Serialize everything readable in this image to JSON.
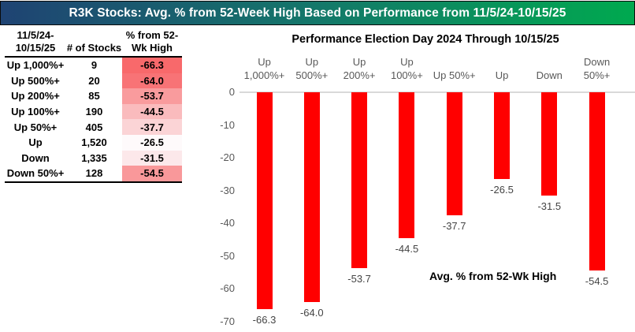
{
  "title_bar": {
    "text": "R3K Stocks: Avg. % from 52-Week High Based on Performance from 11/5/24-10/15/25",
    "gradient_left": "#1F4373",
    "gradient_mid": "#14786A",
    "gradient_right": "#00A94F",
    "text_color": "#FFFFFF"
  },
  "table": {
    "header": {
      "period_line1": "11/5/24-",
      "period_line2": "10/15/25",
      "stocks": "# of Stocks",
      "pct_line1": "% from 52-",
      "pct_line2": "Wk High"
    },
    "rows": [
      {
        "label": "Up 1,000%+",
        "count": "9",
        "value": "-66.3",
        "bg": "#F8696B"
      },
      {
        "label": "Up 500%+",
        "count": "20",
        "value": "-64.0",
        "bg": "#F87376"
      },
      {
        "label": "Up 200%+",
        "count": "85",
        "value": "-53.7",
        "bg": "#F99B9D"
      },
      {
        "label": "Up 100%+",
        "count": "190",
        "value": "-44.5",
        "bg": "#FABBBD"
      },
      {
        "label": "Up 50%+",
        "count": "405",
        "value": "-37.7",
        "bg": "#FBD4D6"
      },
      {
        "label": "Up",
        "count": "1,520",
        "value": "-26.5",
        "bg": "#FEFAFB"
      },
      {
        "label": "Down",
        "count": "1,335",
        "value": "-31.5",
        "bg": "#FCE8EA"
      },
      {
        "label": "Down 50%+",
        "count": "128",
        "value": "-54.5",
        "bg": "#F9989A"
      }
    ]
  },
  "chart_data": {
    "type": "bar",
    "title": "Performance Election Day 2024 Through 10/15/25",
    "categories": [
      "Up 1,000%+",
      "Up 500%+",
      "Up 200%+",
      "Up 100%+",
      "Up 50%+",
      "Up",
      "Down",
      "Down 50%+"
    ],
    "category_label_lines": [
      [
        "Up",
        "1,000%+"
      ],
      [
        "Up",
        "500%+"
      ],
      [
        "Up",
        "200%+"
      ],
      [
        "Up",
        "100%+"
      ],
      [
        "Up 50%+"
      ],
      [
        "Up"
      ],
      [
        "Down"
      ],
      [
        "Down",
        "50%+"
      ]
    ],
    "values": [
      -66.3,
      -64.0,
      -53.7,
      -44.5,
      -37.7,
      -26.5,
      -31.5,
      -54.5
    ],
    "data_labels": [
      "-66.3",
      "-64.0",
      "-53.7",
      "-44.5",
      "-37.7",
      "-26.5",
      "-31.5",
      "-54.5"
    ],
    "annotation": "Avg. % from 52-Wk High",
    "xlabel": "",
    "ylabel": "",
    "ylim": [
      -70,
      0
    ],
    "yticks": [
      "0",
      "-10",
      "-20",
      "-30",
      "-40",
      "-50",
      "-60",
      "-70"
    ],
    "bar_color": "#FF0000",
    "axis_line_color": "#D9D9D9",
    "tick_label_color": "#595959",
    "data_label_color": "#444444",
    "grid": false,
    "legend": false
  }
}
